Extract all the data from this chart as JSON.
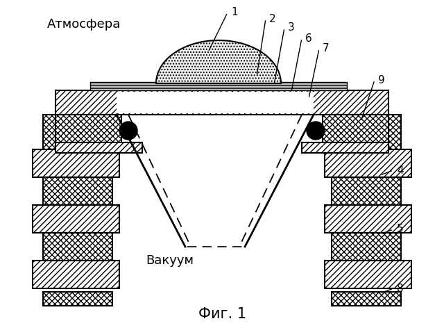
{
  "bg": "#ffffff",
  "label_atm": "Атмосфера",
  "label_vac": "Вакуум",
  "fig_title": "Фиг. 1",
  "diag_hatch": "////",
  "cross_hatch": "xxxx",
  "dot_hatch": "....",
  "grating_hatch": "||||"
}
